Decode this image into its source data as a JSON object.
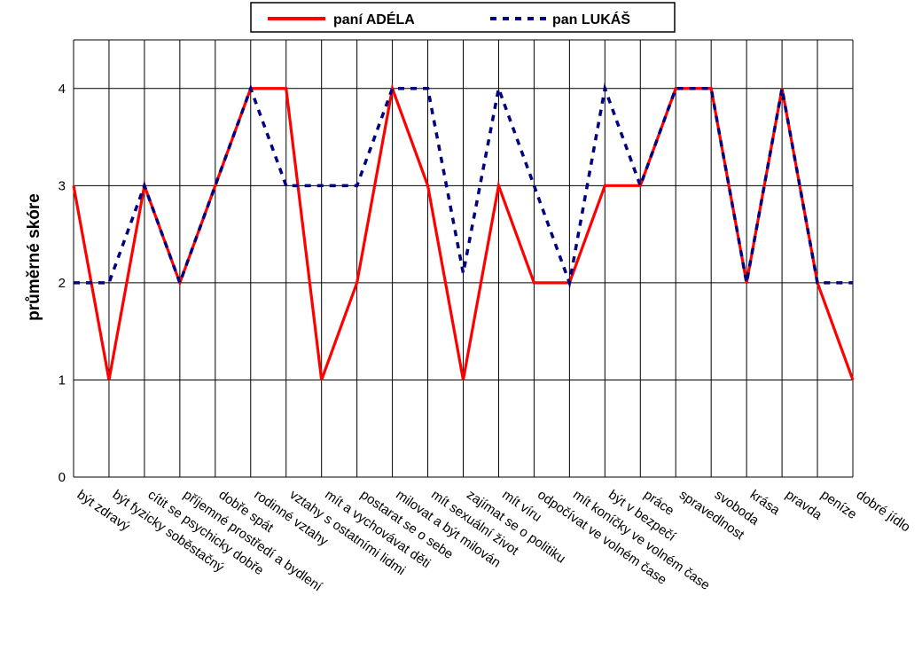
{
  "chart_data": {
    "type": "line",
    "ylabel": "průměrné skóre",
    "xlabel": "",
    "ylim": [
      0,
      4.5
    ],
    "yticks": [
      "0",
      "1",
      "2",
      "3",
      "4"
    ],
    "grid": true,
    "legend_position": "top-center",
    "categories": [
      "být zdravý",
      "být fyzicky soběstačný",
      "cítit se psychicky dobře",
      "příjemné prostředí a bydlení",
      "dobře spát",
      "rodinné vztahy",
      "vztahy s ostatními lidmi",
      "mít a vychovávat děti",
      "postarat se o sebe",
      "milovat a být milován",
      "mít sexuální život",
      "zajímat se o politiku",
      "mít víru",
      "odpočívat ve volném čase",
      "mít koníčky ve volném čase",
      "být v bezpečí",
      "práce",
      "spravedlnost",
      "svoboda",
      "krása",
      "pravda",
      "peníze",
      "dobré jídlo"
    ],
    "series": [
      {
        "name": "paní ADÉLA",
        "color": "#ff0000",
        "style": "solid",
        "values": [
          3,
          1,
          3,
          2,
          3,
          4,
          4,
          1,
          2,
          4,
          3,
          1,
          3,
          2,
          2,
          3,
          3,
          4,
          4,
          2,
          4,
          2,
          1
        ]
      },
      {
        "name": "pan LUKÁŠ",
        "color": "#000080",
        "style": "dashed",
        "values": [
          2,
          2,
          3,
          2,
          3,
          4,
          3,
          3,
          3,
          4,
          4,
          2.1,
          4,
          3,
          2,
          4,
          3,
          4,
          4,
          2,
          4,
          2,
          2
        ]
      }
    ]
  }
}
